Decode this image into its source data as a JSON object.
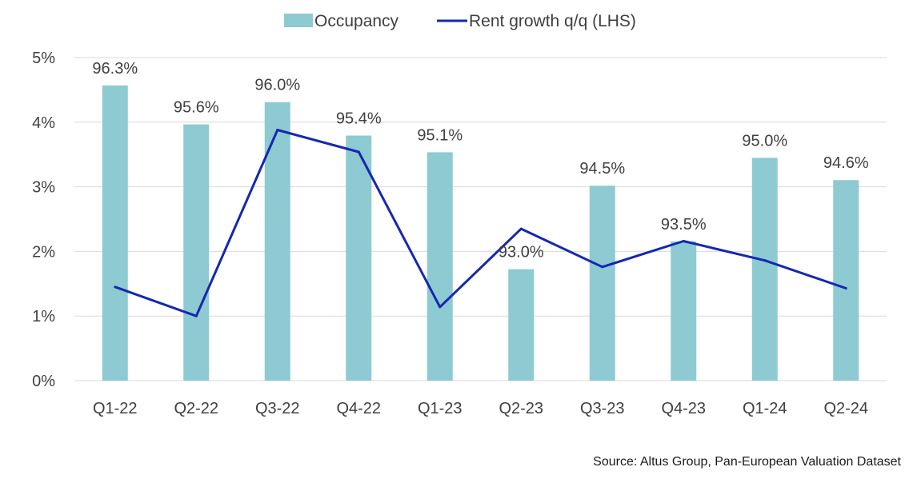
{
  "chart_data": {
    "type": "bar+line",
    "categories": [
      "Q1-22",
      "Q2-22",
      "Q3-22",
      "Q4-22",
      "Q1-23",
      "Q2-23",
      "Q3-23",
      "Q4-23",
      "Q1-24",
      "Q2-24"
    ],
    "series": [
      {
        "name": "Occupancy",
        "type": "bar",
        "axis": "right (hidden)",
        "values": [
          96.3,
          95.6,
          96.0,
          95.4,
          95.1,
          93.0,
          94.5,
          93.5,
          95.0,
          94.6
        ],
        "data_labels": [
          "96.3%",
          "95.6%",
          "96.0%",
          "95.4%",
          "95.1%",
          "93.0%",
          "94.5%",
          "93.5%",
          "95.0%",
          "94.6%"
        ],
        "color": "#8ECAD1"
      },
      {
        "name": "Rent growth q/q (LHS)",
        "type": "line",
        "axis": "left",
        "values": [
          1.45,
          1.0,
          3.88,
          3.54,
          1.14,
          2.35,
          1.76,
          2.16,
          1.86,
          1.43
        ],
        "color": "#1428B0"
      }
    ],
    "y_left": {
      "min": 0,
      "max": 5,
      "ticks": [
        0,
        1,
        2,
        3,
        4,
        5
      ],
      "tick_labels": [
        "0%",
        "1%",
        "2%",
        "3%",
        "4%",
        "5%"
      ]
    },
    "y_right_hidden": {
      "min": 91.0,
      "max": 96.8
    },
    "grid": true,
    "legend_position": "top-center",
    "source": "Source:  Altus Group, Pan-European Valuation Dataset"
  }
}
